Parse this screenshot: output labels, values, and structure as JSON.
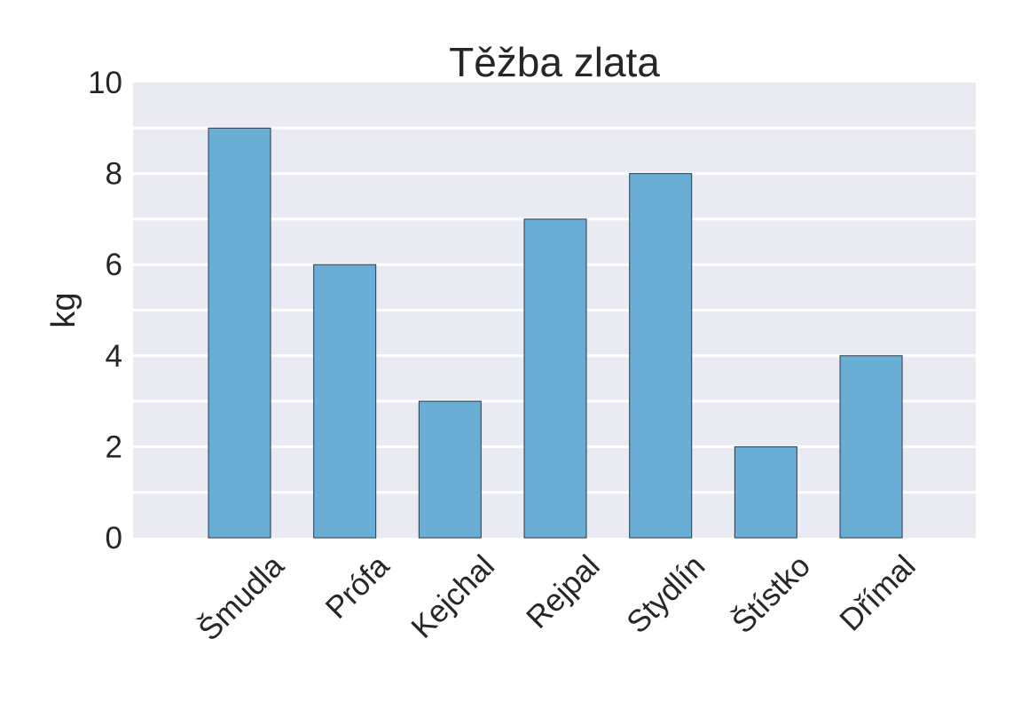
{
  "chart_data": {
    "type": "bar",
    "title": "Těžba zlata",
    "xlabel": "",
    "ylabel": "kg",
    "categories": [
      "Šmudla",
      "Prófa",
      "Kejchal",
      "Rejpal",
      "Stydlín",
      "Štístko",
      "Dřímal"
    ],
    "values": [
      9,
      6,
      3,
      7,
      8,
      2,
      4
    ],
    "ylim": [
      0,
      10
    ],
    "yticks": [
      0,
      2,
      4,
      6,
      8,
      10
    ],
    "minor_gridlines": [
      1,
      3,
      5,
      7,
      9
    ],
    "grid": true,
    "colors": {
      "bar": "#6aaed6",
      "bar_edge": "#2b3a47",
      "plot_background": "#eaeaf2",
      "gridline": "#ffffff",
      "text": "#262626"
    }
  }
}
